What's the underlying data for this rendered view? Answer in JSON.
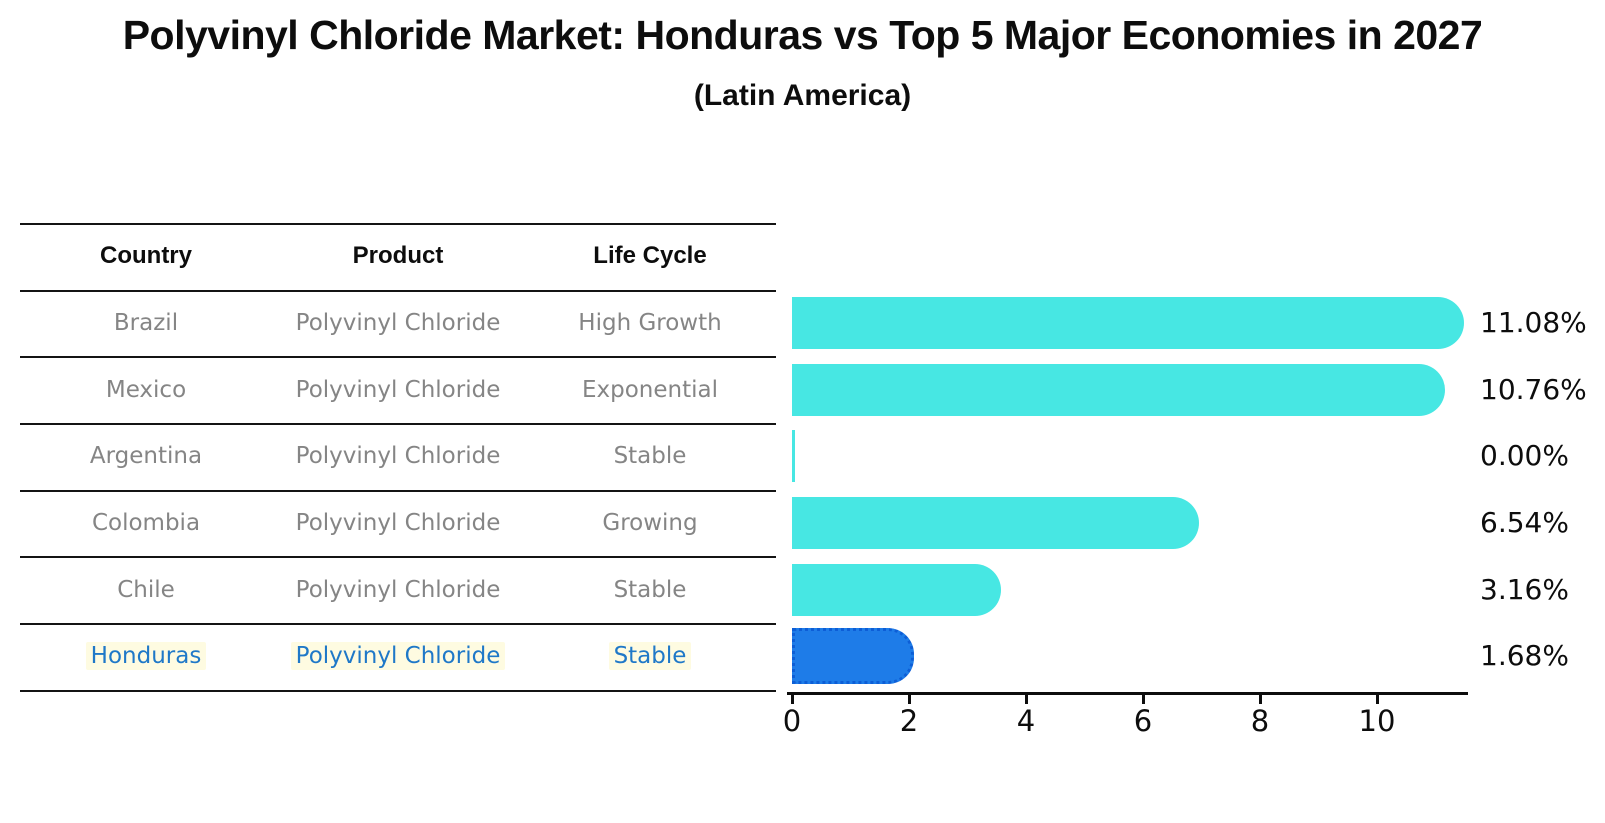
{
  "title": "Polyvinyl Chloride Market: Honduras vs Top 5 Major Economies in 2027",
  "subtitle": "(Latin America)",
  "table": {
    "headers": [
      "Country",
      "Product",
      "Life Cycle"
    ],
    "rows": [
      {
        "country": "Brazil",
        "product": "Polyvinyl Chloride",
        "life_cycle": "High Growth",
        "highlighted": false
      },
      {
        "country": "Mexico",
        "product": "Polyvinyl Chloride",
        "life_cycle": "Exponential",
        "highlighted": false
      },
      {
        "country": "Argentina",
        "product": "Polyvinyl Chloride",
        "life_cycle": "Stable",
        "highlighted": false
      },
      {
        "country": "Colombia",
        "product": "Polyvinyl Chloride",
        "life_cycle": "Growing",
        "highlighted": false
      },
      {
        "country": "Chile",
        "product": "Polyvinyl Chloride",
        "life_cycle": "Stable",
        "highlighted": false
      },
      {
        "country": "Honduras",
        "product": "Polyvinyl Chloride",
        "life_cycle": "Stable",
        "highlighted": true
      }
    ]
  },
  "chart_data": {
    "type": "bar",
    "orientation": "horizontal",
    "title": "Polyvinyl Chloride Market: Honduras vs Top 5 Major Economies in 2027 (Latin America)",
    "categories": [
      "Brazil",
      "Mexico",
      "Argentina",
      "Colombia",
      "Chile",
      "Honduras"
    ],
    "values": [
      11.08,
      10.76,
      0.0,
      6.54,
      3.16,
      1.68
    ],
    "value_labels": [
      "11.08%",
      "10.76%",
      "0.00%",
      "6.54%",
      "3.16%",
      "1.68%"
    ],
    "xlabel": "",
    "ylabel": "",
    "xlim": [
      0,
      11.56
    ],
    "xticks": [
      0,
      2,
      4,
      6,
      8,
      10
    ],
    "grid": false,
    "legend": false,
    "bar_color": "#47e7e3",
    "highlight_bar_color": "#1e7ce8",
    "highlight_index": 5,
    "highlight_text_color": "#1f78c8"
  }
}
